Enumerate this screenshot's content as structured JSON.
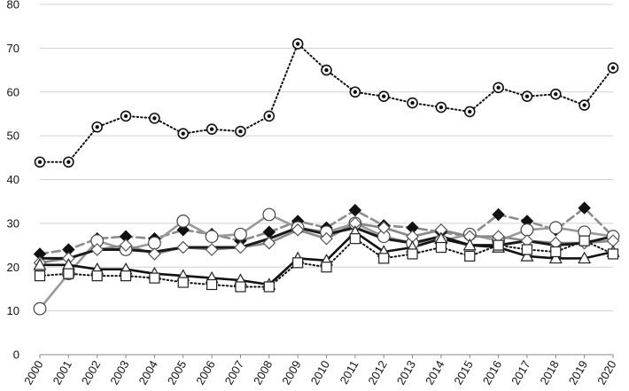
{
  "chart_data": {
    "type": "line",
    "title": "",
    "xlabel": "",
    "ylabel": "",
    "ylim": [
      0,
      80
    ],
    "yticks": [
      0,
      10,
      20,
      30,
      40,
      50,
      60,
      70,
      80
    ],
    "grid": true,
    "legend": "none",
    "categories": [
      "2000",
      "2001",
      "2002",
      "2003",
      "2004",
      "2005",
      "2006",
      "2007",
      "2008",
      "2009",
      "2010",
      "2011",
      "2012",
      "2013",
      "2014",
      "2015",
      "2016",
      "2017",
      "2018",
      "2019",
      "2020"
    ],
    "series": [
      {
        "marker": "double-circle",
        "line": "dotted",
        "color": "#111111",
        "values": [
          44,
          44,
          52,
          54.5,
          54,
          50.5,
          51.5,
          51,
          54.5,
          71,
          65,
          60,
          59,
          57.5,
          56.5,
          55.5,
          61,
          59,
          59.5,
          57,
          65.5
        ]
      },
      {
        "marker": "filled-diamond",
        "line": "dashed",
        "color": "#8c8c8c",
        "values": [
          23,
          24,
          26.5,
          27,
          26.5,
          28.5,
          27.5,
          26,
          28,
          30.5,
          29,
          33,
          29.5,
          29,
          28,
          27,
          32,
          30.5,
          28.5,
          33.5,
          27
        ]
      },
      {
        "marker": "open-circle",
        "line": "solid",
        "color": "#999999",
        "values": [
          10.5,
          18.5,
          26,
          24,
          25.5,
          30.5,
          27,
          27.5,
          32,
          29,
          28,
          30,
          27,
          25.5,
          26,
          27.5,
          26,
          28.5,
          29,
          28,
          27
        ]
      },
      {
        "marker": "open-diamond",
        "line": "solid",
        "color": "#888888",
        "values": [
          21,
          22,
          24,
          25,
          23,
          24.5,
          24,
          24.5,
          25.5,
          28.5,
          26.5,
          30,
          29,
          27,
          28.5,
          27,
          27,
          26,
          25.5,
          25.5,
          26
        ]
      },
      {
        "marker": "none",
        "line": "solid",
        "color": "#1a1a1a",
        "values": [
          22,
          22,
          24,
          24,
          23.5,
          24.5,
          24.5,
          24.5,
          26.5,
          29,
          27.5,
          29,
          26.5,
          25.5,
          27,
          25,
          25,
          26,
          25,
          25.5,
          27
        ]
      },
      {
        "marker": "open-triangle",
        "line": "solid",
        "color": "#111111",
        "values": [
          20.5,
          20.5,
          19.5,
          19.5,
          18.5,
          18,
          17.5,
          17,
          16,
          22,
          21.5,
          28,
          23.5,
          24.5,
          26.5,
          25,
          24.5,
          22.5,
          22,
          22,
          23.5
        ]
      },
      {
        "marker": "open-square",
        "line": "dotted",
        "color": "#111111",
        "values": [
          18,
          18.5,
          18,
          18,
          17.5,
          16.5,
          16,
          15.5,
          15.5,
          21,
          20,
          26.5,
          22,
          23,
          24.5,
          22.5,
          25,
          24,
          23.5,
          26,
          23
        ]
      }
    ]
  }
}
